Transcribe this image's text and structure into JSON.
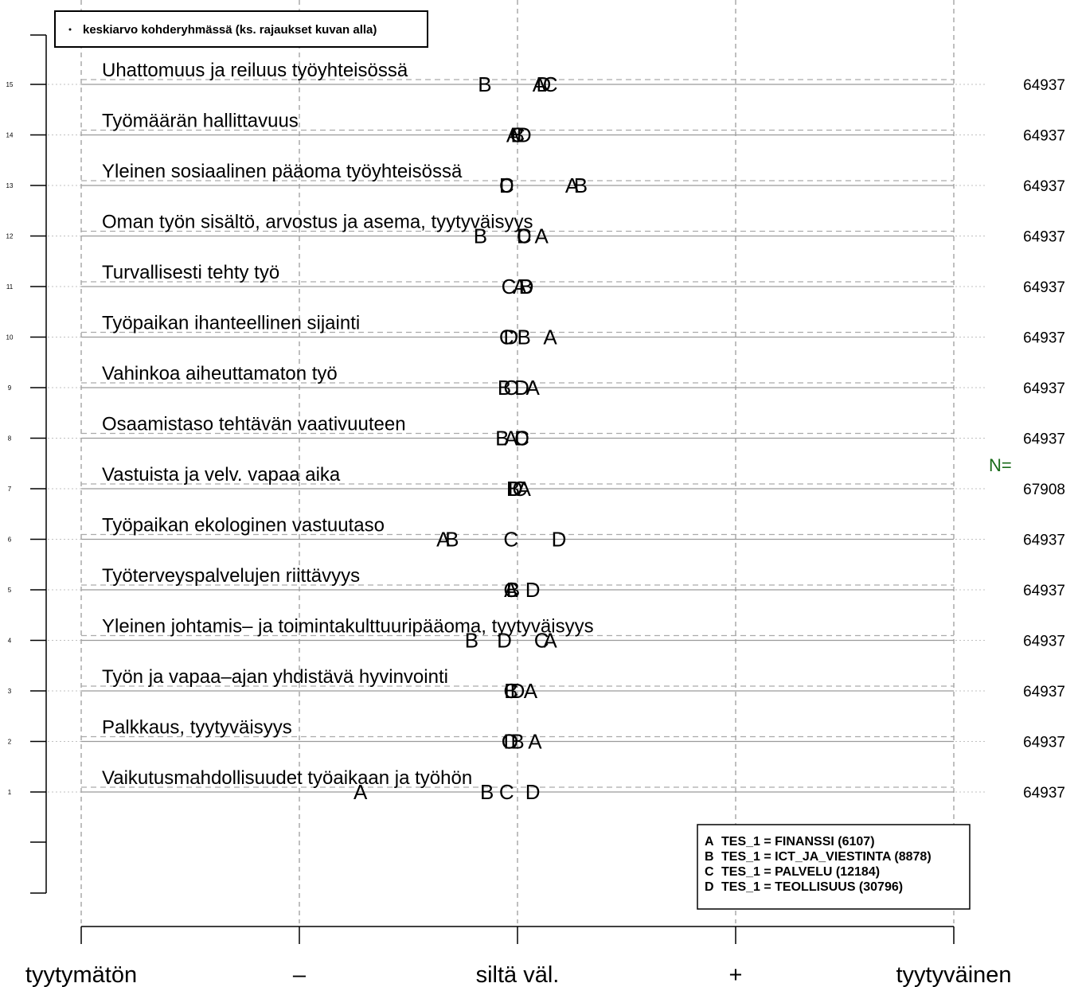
{
  "chart_data": {
    "type": "scatter",
    "title": "",
    "top_legend": "keskiarvo kohderyhmässä (ks. rajaukset kuvan alla)",
    "x_ticks": [
      "tyytymätön",
      "–",
      "siltä väl.",
      "+",
      "tyytyväinen"
    ],
    "x_values": [
      -2,
      -1,
      0,
      1,
      2
    ],
    "xlim": [
      -2,
      2
    ],
    "y_ticks": [
      1,
      2,
      3,
      4,
      5,
      6,
      7,
      8,
      9,
      10,
      11,
      12,
      13,
      14,
      15
    ],
    "n_header": "N=",
    "groups": [
      {
        "letter": "A",
        "label": "TES_1 = FINANSSI (6107)"
      },
      {
        "letter": "B",
        "label": "TES_1 = ICT_JA_VIESTINTA (8878)"
      },
      {
        "letter": "C",
        "label": "TES_1 = PALVELU (12184)"
      },
      {
        "letter": "D",
        "label": "TES_1 = TEOLLISUUS (30796)"
      }
    ],
    "items": [
      {
        "y": 15,
        "label": "Uhattomuus ja reiluus työyhteisössä",
        "n": "64937",
        "A": 0.1,
        "B": -0.15,
        "C": 0.15,
        "D": 0.12
      },
      {
        "y": 14,
        "label": "Työmäärän hallittavuus",
        "n": "64937",
        "A": -0.02,
        "B": 0.0,
        "C": 0.0,
        "D": 0.03
      },
      {
        "y": 13,
        "label": "Yleinen sosiaalinen pääoma työyhteisössä",
        "n": "64937",
        "A": 0.25,
        "B": 0.29,
        "C": -0.05,
        "D": -0.05
      },
      {
        "y": 12,
        "label": "Oman työn sisältö, arvostus ja asema, tyytyväisyys",
        "n": "64937",
        "A": 0.11,
        "B": -0.17,
        "C": 0.03,
        "D": 0.03
      },
      {
        "y": 11,
        "label": "Turvallisesti tehty työ",
        "n": "64937",
        "A": 0.01,
        "B": 0.04,
        "C": -0.04,
        "D": 0.04
      },
      {
        "y": 10,
        "label": "Työpaikan ihanteellinen sijainti",
        "n": "64937",
        "A": 0.15,
        "B": 0.03,
        "C": -0.05,
        "D": -0.03
      },
      {
        "y": 9,
        "label": "Vahinkoa aiheuttamaton työ",
        "n": "64937",
        "A": 0.07,
        "B": -0.06,
        "C": -0.03,
        "D": 0.02
      },
      {
        "y": 8,
        "label": "Osaamistaso tehtävän vaativuuteen",
        "n": "64937",
        "A": -0.03,
        "B": -0.07,
        "C": 0.02,
        "D": 0.02
      },
      {
        "y": 7,
        "label": "Vastuista ja velv. vapaa aika",
        "n": "67908",
        "A": 0.03,
        "B": -0.02,
        "C": 0.01,
        "D": -0.01
      },
      {
        "y": 6,
        "label": "Työpaikan ekologinen vastuutaso",
        "n": "64937",
        "A": -0.34,
        "B": -0.3,
        "C": -0.03,
        "D": 0.19
      },
      {
        "y": 5,
        "label": "Työterveyspalvelujen riittävyys",
        "n": "64937",
        "A": -0.03,
        "B": -0.02,
        "C": -0.03,
        "D": 0.07
      },
      {
        "y": 4,
        "label": "Yleinen johtamis– ja toimintakulttuuripääoma, tyytyväisyys",
        "n": "64937",
        "A": 0.15,
        "B": -0.21,
        "C": 0.11,
        "D": -0.06
      },
      {
        "y": 3,
        "label": "Työn ja vapaa–ajan yhdistävä hyvinvointi",
        "n": "64937",
        "A": 0.06,
        "B": -0.03,
        "C": -0.03,
        "D": 0.0
      },
      {
        "y": 2,
        "label": "Palkkaus, tyytyväisyys",
        "n": "64937",
        "A": 0.08,
        "B": 0.0,
        "C": -0.04,
        "D": -0.03
      },
      {
        "y": 1,
        "label": "Vaikutusmahdollisuudet työaikaan ja työhön",
        "n": "64937",
        "A": -0.72,
        "B": -0.14,
        "C": -0.05,
        "D": 0.07
      }
    ]
  }
}
